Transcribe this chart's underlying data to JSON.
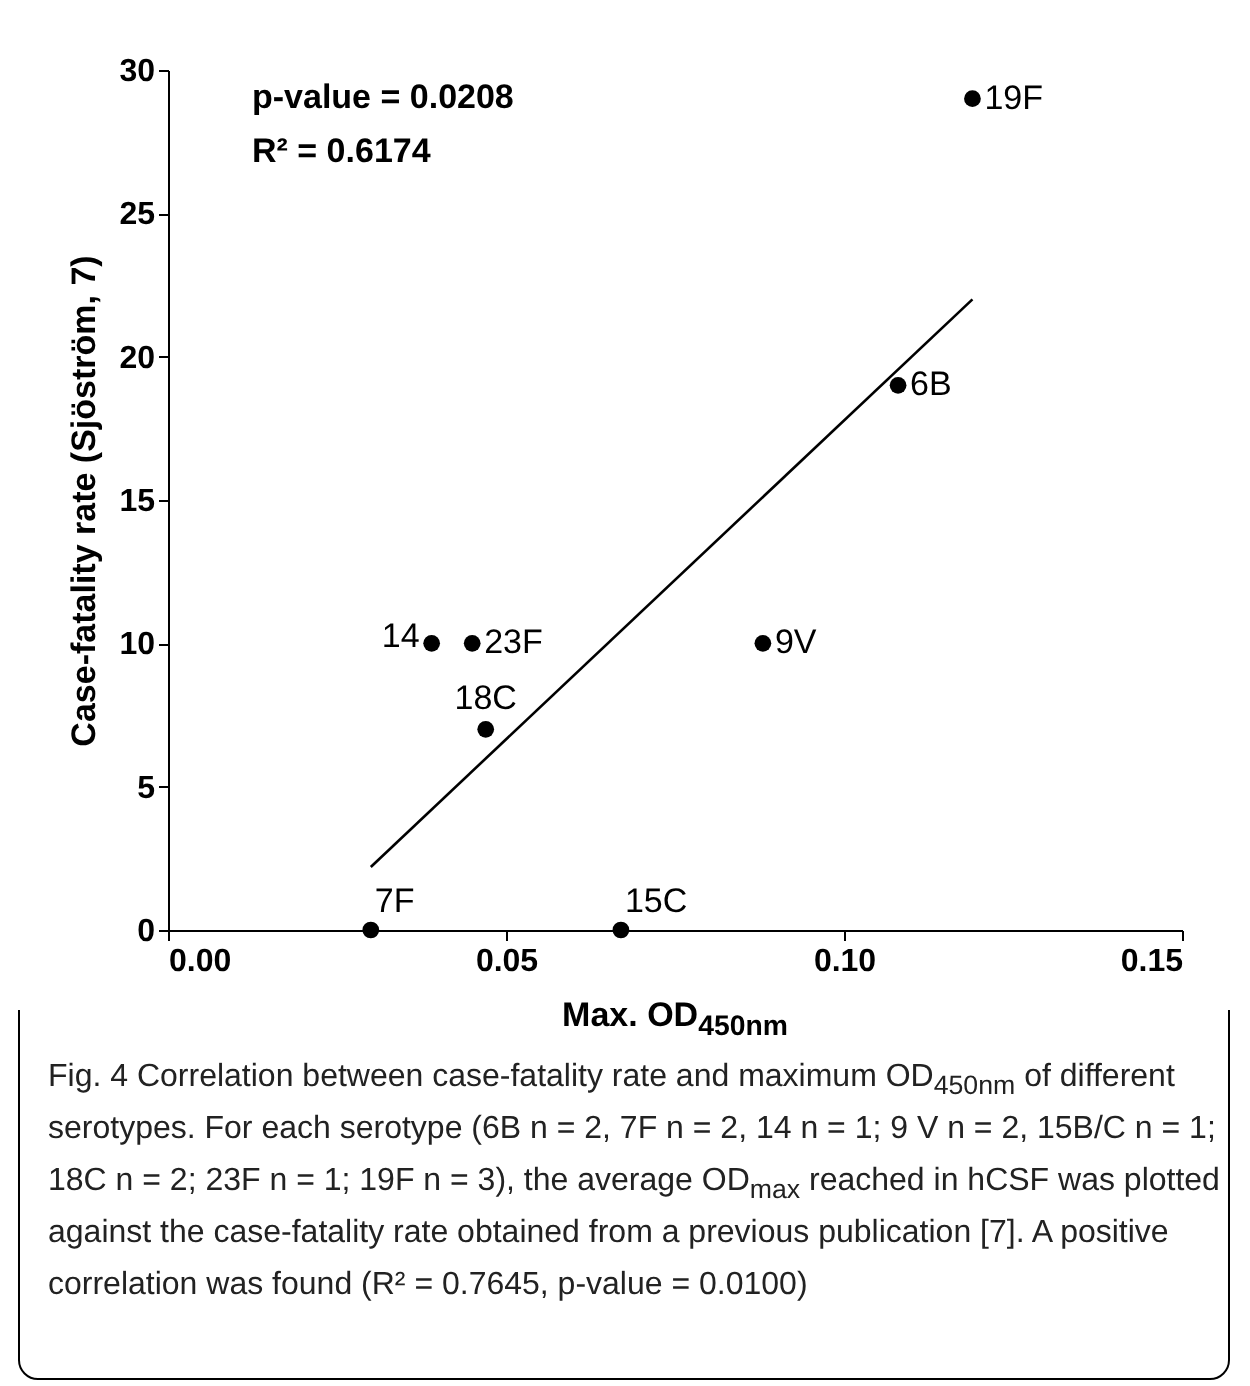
{
  "chart_data": {
    "type": "scatter",
    "xlabel": "Max. OD$_{450nm}$",
    "ylabel": "Case-fatality rate (Sjöström, 7)",
    "xlim": [
      0,
      0.15
    ],
    "ylim": [
      0,
      30
    ],
    "xticks": [
      {
        "value": 0,
        "label": "0.00"
      },
      {
        "value": 0.05,
        "label": "0.05"
      },
      {
        "value": 0.1,
        "label": "0.10"
      },
      {
        "value": 0.15,
        "label": "0.15"
      }
    ],
    "yticks": [
      0,
      5,
      10,
      15,
      20,
      25,
      30
    ],
    "grid": false,
    "marker": "circle",
    "series": [
      {
        "color": "#000000",
        "x": [
          0.03,
          0.067,
          0.039,
          0.045,
          0.047,
          0.088,
          0.108,
          0.119
        ],
        "values": [
          0,
          0,
          10,
          10,
          7,
          10,
          19,
          29
        ]
      },
      {
        "type": "line",
        "color": "#000000",
        "marker": "none",
        "x": [
          0.03,
          0.119
        ],
        "values": [
          2.2,
          22.0
        ]
      }
    ],
    "annotations": [
      {
        "text": "7F",
        "x": 0.03,
        "y": 0
      },
      {
        "text": "15C",
        "x": 0.067,
        "y": 0
      },
      {
        "text": "14",
        "x": 0.039,
        "y": 10
      },
      {
        "text": "23F",
        "x": 0.045,
        "y": 10
      },
      {
        "text": "18C",
        "x": 0.047,
        "y": 7
      },
      {
        "text": "9V",
        "x": 0.088,
        "y": 10
      },
      {
        "text": "6B",
        "x": 0.108,
        "y": 19
      },
      {
        "text": "19F",
        "x": 0.119,
        "y": 29
      },
      "p-value = 0.0208",
      "R² = 0.6174",
      "Fig. 4 Correlation between case-fatality rate and maximum OD$_{450nm}$ of different serotypes. For each serotype (6B n = 2, 7F n = 2, 14 n = 1; 9 V n = 2, 15B/C n = 1; 18C n = 2; 23F n = 1; 19F n = 3), the average OD$_{max}$ reached in hCSF was plotted against the case-fatality rate obtained from a previous publication [7]. A positive correlation was found (R² = 0.7645, p-value = 0.0100)"
    ]
  }
}
